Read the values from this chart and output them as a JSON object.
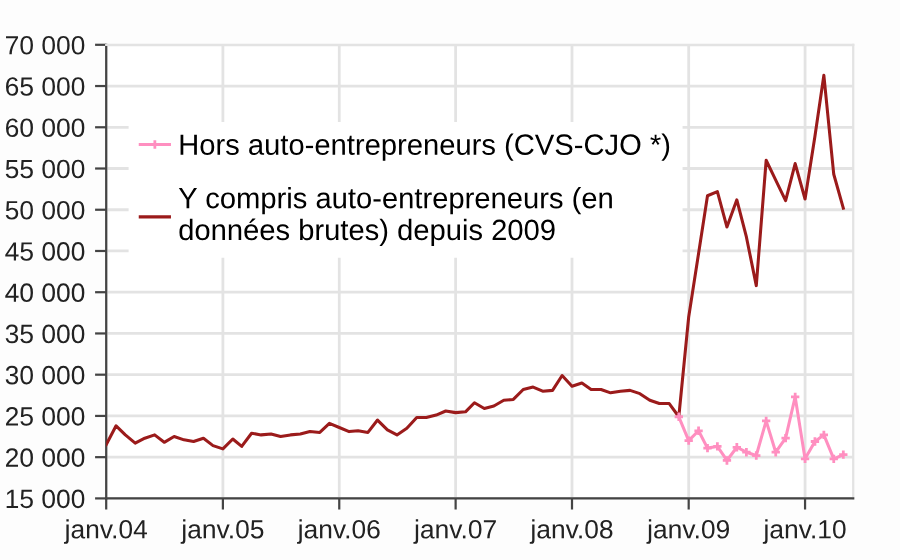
{
  "chart_data": {
    "type": "line",
    "x": [
      "2004-01",
      "2004-02",
      "2004-03",
      "2004-04",
      "2004-05",
      "2004-06",
      "2004-07",
      "2004-08",
      "2004-09",
      "2004-10",
      "2004-11",
      "2004-12",
      "2005-01",
      "2005-02",
      "2005-03",
      "2005-04",
      "2005-05",
      "2005-06",
      "2005-07",
      "2005-08",
      "2005-09",
      "2005-10",
      "2005-11",
      "2005-12",
      "2006-01",
      "2006-02",
      "2006-03",
      "2006-04",
      "2006-05",
      "2006-06",
      "2006-07",
      "2006-08",
      "2006-09",
      "2006-10",
      "2006-11",
      "2006-12",
      "2007-01",
      "2007-02",
      "2007-03",
      "2007-04",
      "2007-05",
      "2007-06",
      "2007-07",
      "2007-08",
      "2007-09",
      "2007-10",
      "2007-11",
      "2007-12",
      "2008-01",
      "2008-02",
      "2008-03",
      "2008-04",
      "2008-05",
      "2008-06",
      "2008-07",
      "2008-08",
      "2008-09",
      "2008-10",
      "2008-11",
      "2008-12",
      "2009-01",
      "2009-02",
      "2009-03",
      "2009-04",
      "2009-05",
      "2009-06",
      "2009-07",
      "2009-08",
      "2009-09",
      "2009-10",
      "2009-11",
      "2009-12",
      "2010-01",
      "2010-02",
      "2010-03",
      "2010-04",
      "2010-05"
    ],
    "series": [
      {
        "name": "Hors auto-entrepreneurs (CVS-CJO *)",
        "color": "#ff8fc0",
        "marker": "cross",
        "x": [
          "2008-12",
          "2009-01",
          "2009-02",
          "2009-03",
          "2009-04",
          "2009-05",
          "2009-06",
          "2009-07",
          "2009-08",
          "2009-09",
          "2009-10",
          "2009-11",
          "2009-12",
          "2010-01",
          "2010-02",
          "2010-03",
          "2010-04",
          "2010-05"
        ],
        "values": [
          24900,
          22000,
          23200,
          21100,
          21300,
          19600,
          21200,
          20600,
          20200,
          24400,
          20600,
          22300,
          27300,
          19800,
          21900,
          22700,
          19800,
          20300
        ]
      },
      {
        "name": "Y compris auto-entrepreneurs (en\ndonnées brutes) depuis 2009",
        "color": "#9b1b1b",
        "marker": "none",
        "values": [
          21500,
          23800,
          22700,
          21700,
          22300,
          22700,
          21800,
          22500,
          22100,
          21900,
          22300,
          21400,
          21000,
          22200,
          21300,
          22900,
          22700,
          22800,
          22500,
          22700,
          22800,
          23100,
          23000,
          24100,
          23600,
          23100,
          23200,
          23000,
          24500,
          23300,
          22700,
          23500,
          24800,
          24800,
          25100,
          25600,
          25400,
          25500,
          26600,
          25900,
          26200,
          26900,
          27000,
          28200,
          28500,
          28000,
          28100,
          29900,
          28600,
          29000,
          28200,
          28200,
          27800,
          28000,
          28100,
          27700,
          26900,
          26500,
          26500,
          24900,
          37000,
          44700,
          51700,
          52200,
          47900,
          51200,
          46700,
          40800,
          56000,
          53600,
          51100,
          55600,
          51300,
          58900,
          66300,
          54300,
          50200
        ]
      }
    ],
    "xlim": [
      "2004-01",
      "2010-06"
    ],
    "xticks": [
      {
        "value": "2004-01",
        "label": "janv.04"
      },
      {
        "value": "2005-01",
        "label": "janv.05"
      },
      {
        "value": "2006-01",
        "label": "janv.06"
      },
      {
        "value": "2007-01",
        "label": "janv.07"
      },
      {
        "value": "2008-01",
        "label": "janv.08"
      },
      {
        "value": "2009-01",
        "label": "janv.09"
      },
      {
        "value": "2010-01",
        "label": "janv.10"
      }
    ],
    "ylim": [
      15000,
      70000
    ],
    "yticks": [
      {
        "value": 15000,
        "label": "15 000"
      },
      {
        "value": 20000,
        "label": "20 000"
      },
      {
        "value": 25000,
        "label": "25 000"
      },
      {
        "value": 30000,
        "label": "30 000"
      },
      {
        "value": 35000,
        "label": "35 000"
      },
      {
        "value": 40000,
        "label": "40 000"
      },
      {
        "value": 45000,
        "label": "45 000"
      },
      {
        "value": 50000,
        "label": "50 000"
      },
      {
        "value": 55000,
        "label": "55 000"
      },
      {
        "value": 60000,
        "label": "60 000"
      },
      {
        "value": 65000,
        "label": "65 000"
      },
      {
        "value": 70000,
        "label": "70 000"
      }
    ],
    "grid": true,
    "legend": "top left",
    "line_style": "solid"
  }
}
